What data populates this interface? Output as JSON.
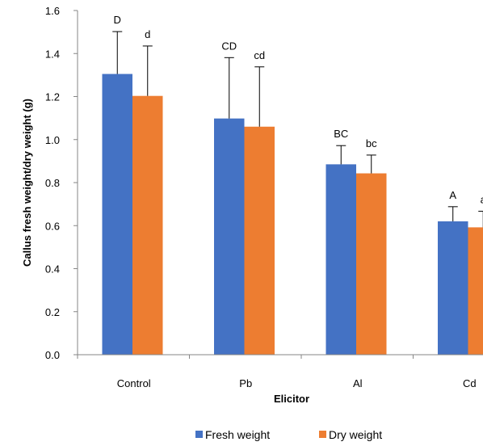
{
  "chart_data": {
    "type": "bar",
    "xlabel": "Elicitor",
    "ylabel": "Callus fresh weight/dry weight (g)",
    "categories": [
      "Control",
      "Pb",
      "Al",
      "Cd"
    ],
    "ylim": [
      0,
      1.6
    ],
    "yticks": [
      "0.0",
      "0.2",
      "0.4",
      "0.6",
      "0.8",
      "1.0",
      "1.2",
      "1.4",
      "1.6"
    ],
    "series": [
      {
        "name": "Fresh weight",
        "color": "#4472C4",
        "values": [
          1.305,
          1.098,
          0.885,
          0.62
        ],
        "error": [
          0.197,
          0.283,
          0.087,
          0.068
        ],
        "labels": [
          "D",
          "CD",
          "BC",
          "A"
        ]
      },
      {
        "name": "Dry weight",
        "color": "#ED7D31",
        "values": [
          1.203,
          1.06,
          0.843,
          0.592
        ],
        "error": [
          0.232,
          0.278,
          0.085,
          0.075
        ],
        "labels": [
          "d",
          "cd",
          "bc",
          "a"
        ]
      }
    ],
    "grid": false,
    "legend_position": "bottom"
  }
}
